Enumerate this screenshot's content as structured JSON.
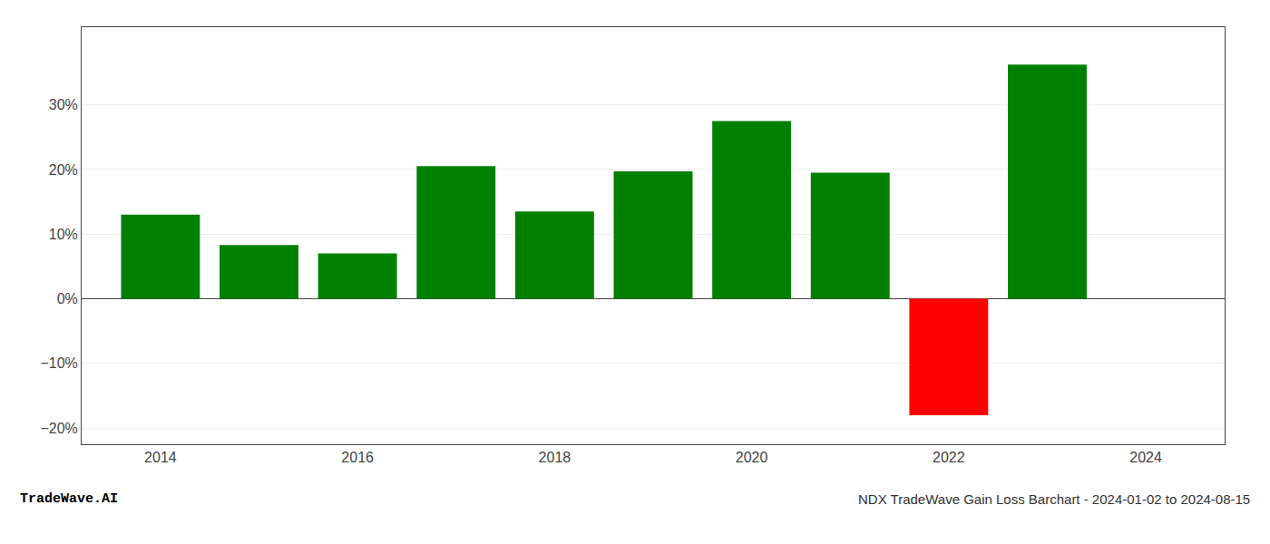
{
  "chart_data": {
    "type": "bar",
    "x": [
      2014,
      2015,
      2016,
      2017,
      2018,
      2019,
      2020,
      2021,
      2022,
      2023
    ],
    "values": [
      0.13,
      0.083,
      0.07,
      0.205,
      0.135,
      0.197,
      0.275,
      0.195,
      -0.18,
      0.362
    ],
    "colors": [
      "#008000",
      "#008000",
      "#008000",
      "#008000",
      "#008000",
      "#008000",
      "#008000",
      "#008000",
      "#ff0000",
      "#008000"
    ],
    "xlim": [
      2013.2,
      2024.8
    ],
    "xticks": [
      2014,
      2016,
      2018,
      2020,
      2022,
      2024
    ],
    "ylim": [
      -0.225,
      0.42
    ],
    "yticks": [
      {
        "value": -0.2,
        "label": "−20%"
      },
      {
        "value": -0.1,
        "label": "−10%"
      },
      {
        "value": 0.0,
        "label": "0%"
      },
      {
        "value": 0.1,
        "label": "10%"
      },
      {
        "value": 0.2,
        "label": "20%"
      },
      {
        "value": 0.3,
        "label": "30%"
      }
    ],
    "grid": true,
    "annotations": [
      "TradeWave.AI",
      "NDX TradeWave Gain Loss Barchart - 2024-01-02 to 2024-08-15"
    ]
  }
}
